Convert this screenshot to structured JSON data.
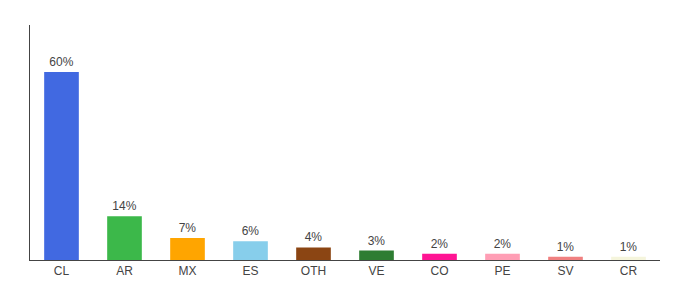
{
  "chart_data": {
    "type": "bar",
    "categories": [
      "CL",
      "AR",
      "MX",
      "ES",
      "OTH",
      "VE",
      "CO",
      "PE",
      "SV",
      "CR"
    ],
    "values": [
      60,
      14,
      7,
      6,
      4,
      3,
      2,
      2,
      1,
      1
    ],
    "value_labels": [
      "60%",
      "14%",
      "7%",
      "6%",
      "4%",
      "3%",
      "2%",
      "2%",
      "1%",
      "1%"
    ],
    "colors": [
      "#4169E1",
      "#3CB84A",
      "#FFA500",
      "#87CEEB",
      "#8B4513",
      "#2E7D32",
      "#FF1493",
      "#FF9EB5",
      "#F08080",
      "#F5F5DC"
    ],
    "ylim": [
      0,
      75
    ],
    "grid": false,
    "data_labels": true,
    "tick_labels": "x"
  }
}
